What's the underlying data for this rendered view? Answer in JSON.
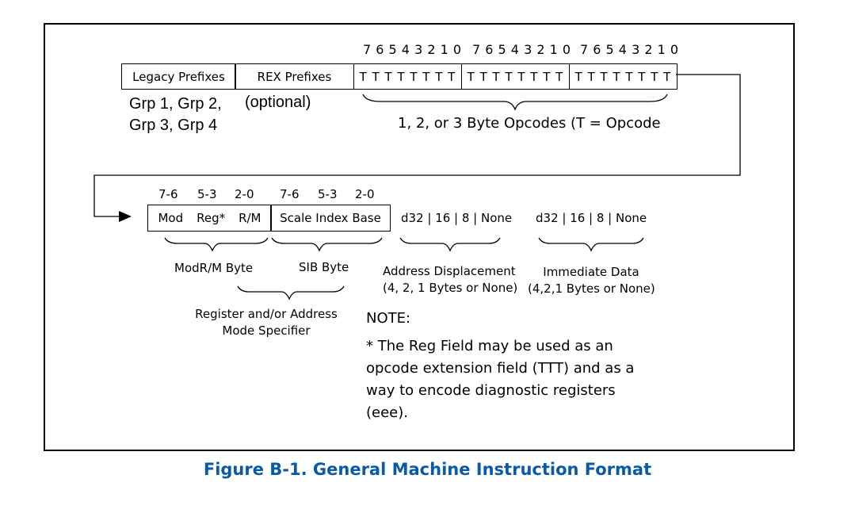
{
  "top_row": {
    "legacy_prefixes": "Legacy Prefixes",
    "rex_prefixes": "REX Prefixes",
    "bit_labels": [
      "7 6 5 4 3 2 1 0",
      "7 6 5 4 3 2 1 0",
      "7 6 5 4 3 2 1 0"
    ],
    "opcode_bytes": [
      "T T T T T T T T",
      "T T T T T T T T",
      "T T T T T T T T"
    ],
    "groups_line1": "Grp 1, Grp 2,",
    "groups_line2": "Grp 3, Grp 4",
    "optional": "(optional)",
    "opcode_caption": "1, 2, or 3 Byte Opcodes (T = Opcode"
  },
  "bottom_row": {
    "modrm_bits": [
      "7-6",
      "5-3",
      "2-0"
    ],
    "sib_bits": [
      "7-6",
      "5-3",
      "2-0"
    ],
    "modrm_fields": [
      "Mod",
      "Reg*",
      "R/M"
    ],
    "sib_fields": "Scale Index Base",
    "displacement_sizes": "d32 | 16 | 8 | None",
    "immediate_sizes": "d32 | 16 | 8 | None",
    "modrm_label": "ModR/M Byte",
    "sib_label": "SIB Byte",
    "displacement_label_1": "Address Displacement",
    "displacement_label_2": "(4, 2, 1 Bytes or None)",
    "immediate_label_1": "Immediate Data",
    "immediate_label_2": "(4,2,1 Bytes or None)",
    "specifier_label_1": "Register and/or Address",
    "specifier_label_2": "Mode Specifier"
  },
  "note": {
    "title": "NOTE:",
    "lines": [
      "*  The Reg Field may be used as an",
      "opcode extension field (TTT) and as a",
      "way to  encode diagnostic registers",
      "(eee)."
    ]
  },
  "caption": "Figure B-1.  General Machine Instruction Format",
  "colors": {
    "caption": "#0a5aa6",
    "lines": "#000000"
  }
}
